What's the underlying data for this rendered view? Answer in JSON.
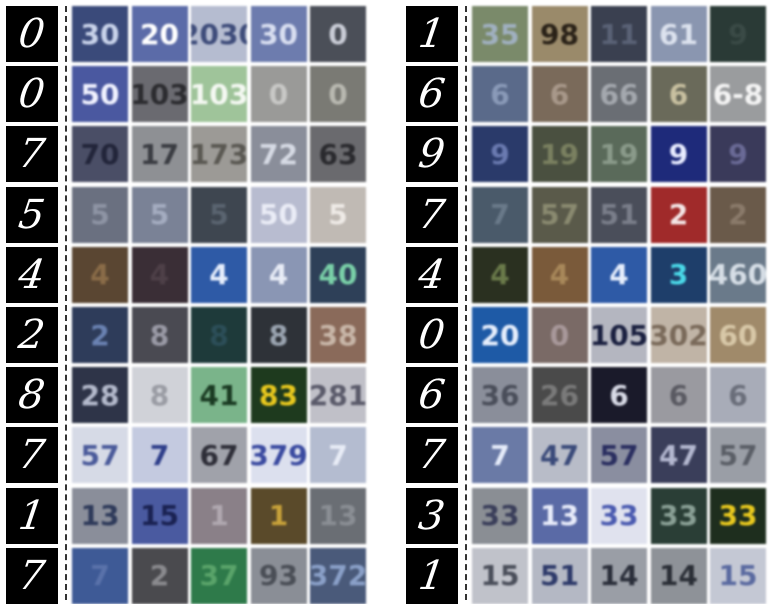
{
  "left_panel": {
    "rows": [
      {
        "digit": "0",
        "tiles": [
          {
            "text": "30",
            "bg": "#3a4a7a",
            "fg": "#c9d3ea"
          },
          {
            "text": "20",
            "bg": "#5b6ba8",
            "fg": "#ffffff"
          },
          {
            "text": "2030",
            "bg": "#b5bcd0",
            "fg": "#3e4c7a"
          },
          {
            "text": "30",
            "bg": "#6d7cae",
            "fg": "#d8def0"
          },
          {
            "text": "0",
            "bg": "#4b4f58",
            "fg": "#c9ccd6"
          }
        ]
      },
      {
        "digit": "0",
        "tiles": [
          {
            "text": "50",
            "bg": "#4a58a0",
            "fg": "#f0f2ff"
          },
          {
            "text": "103",
            "bg": "#6a6a70",
            "fg": "#2c2c30"
          },
          {
            "text": "103",
            "bg": "#9fc49a",
            "fg": "#f4f8f2"
          },
          {
            "text": "0",
            "bg": "#9a9a98",
            "fg": "#c8c8c6"
          },
          {
            "text": "0",
            "bg": "#7a7a74",
            "fg": "#b8b8b0"
          }
        ]
      },
      {
        "digit": "7",
        "tiles": [
          {
            "text": "70",
            "bg": "#4a4e66",
            "fg": "#22253a"
          },
          {
            "text": "17",
            "bg": "#8e9094",
            "fg": "#3a3c42"
          },
          {
            "text": "173",
            "bg": "#9c9a96",
            "fg": "#5a5852"
          },
          {
            "text": "72",
            "bg": "#8a8e9a",
            "fg": "#d6dae4"
          },
          {
            "text": "63",
            "bg": "#6a6a6e",
            "fg": "#2a2a2e"
          }
        ]
      },
      {
        "digit": "5",
        "tiles": [
          {
            "text": "5",
            "bg": "#6a7080",
            "fg": "#8e94a4"
          },
          {
            "text": "5",
            "bg": "#7a8296",
            "fg": "#a4acc0"
          },
          {
            "text": "5",
            "bg": "#3e4650",
            "fg": "#5a6470"
          },
          {
            "text": "50",
            "bg": "#b8bcd0",
            "fg": "#eaecf6"
          },
          {
            "text": "5",
            "bg": "#c0bab4",
            "fg": "#eeeae6"
          }
        ]
      },
      {
        "digit": "4",
        "tiles": [
          {
            "text": "4",
            "bg": "#5a4632",
            "fg": "#8a6c48"
          },
          {
            "text": "4",
            "bg": "#3a2e36",
            "fg": "#4e4048"
          },
          {
            "text": "4",
            "bg": "#2e5aa6",
            "fg": "#e6eefc"
          },
          {
            "text": "4",
            "bg": "#8a96b4",
            "fg": "#e8ecf6"
          },
          {
            "text": "40",
            "bg": "#2e4058",
            "fg": "#7ad0a8"
          }
        ]
      },
      {
        "digit": "2",
        "tiles": [
          {
            "text": "2",
            "bg": "#2e3c5a",
            "fg": "#6a82b2"
          },
          {
            "text": "8",
            "bg": "#4a4a52",
            "fg": "#9a9aa6"
          },
          {
            "text": "8",
            "bg": "#1e3a3a",
            "fg": "#2c4e58"
          },
          {
            "text": "8",
            "bg": "#2e3238",
            "fg": "#9aa4b0"
          },
          {
            "text": "38",
            "bg": "#8a6a5a",
            "fg": "#c8b6a8"
          }
        ]
      },
      {
        "digit": "8",
        "tiles": [
          {
            "text": "28",
            "bg": "#2e3448",
            "fg": "#b4bacc"
          },
          {
            "text": "8",
            "bg": "#d0d2d8",
            "fg": "#9a9ca4"
          },
          {
            "text": "41",
            "bg": "#7ab48a",
            "fg": "#1a3a22"
          },
          {
            "text": "83",
            "bg": "#1e3a1e",
            "fg": "#e8c81e"
          },
          {
            "text": "281",
            "bg": "#c0c0c8",
            "fg": "#5a5a6a"
          }
        ]
      },
      {
        "digit": "7",
        "tiles": [
          {
            "text": "57",
            "bg": "#d6dae6",
            "fg": "#4a5a9a"
          },
          {
            "text": "7",
            "bg": "#c4cae0",
            "fg": "#2e3e8a"
          },
          {
            "text": "67",
            "bg": "#a0a2aa",
            "fg": "#2e2e38"
          },
          {
            "text": "379",
            "bg": "#dce0ee",
            "fg": "#3a4aa0"
          },
          {
            "text": "7",
            "bg": "#b4bcd0",
            "fg": "#e8ecf6"
          }
        ]
      },
      {
        "digit": "1",
        "tiles": [
          {
            "text": "13",
            "bg": "#8a8e9a",
            "fg": "#2e3a5a"
          },
          {
            "text": "15",
            "bg": "#4a5aa0",
            "fg": "#1a2252"
          },
          {
            "text": "1",
            "bg": "#8a8088",
            "fg": "#b0a8b0"
          },
          {
            "text": "1",
            "bg": "#5a4a2a",
            "fg": "#c8a23a"
          },
          {
            "text": "13",
            "bg": "#6a6e74",
            "fg": "#8a8e94"
          }
        ]
      },
      {
        "digit": "7",
        "tiles": [
          {
            "text": "7",
            "bg": "#3e5a96",
            "fg": "#5a72aa"
          },
          {
            "text": "2",
            "bg": "#4a4a4e",
            "fg": "#8a8a8e"
          },
          {
            "text": "37",
            "bg": "#2e7a4a",
            "fg": "#5aa46a"
          },
          {
            "text": "93",
            "bg": "#8a8e96",
            "fg": "#4a4e56"
          },
          {
            "text": "372",
            "bg": "#4a5a7a",
            "fg": "#8aa0c8"
          }
        ]
      }
    ]
  },
  "right_panel": {
    "rows": [
      {
        "digit": "1",
        "tiles": [
          {
            "text": "35",
            "bg": "#7a8a6a",
            "fg": "#a0b0c0"
          },
          {
            "text": "98",
            "bg": "#9a8a6a",
            "fg": "#2a2218"
          },
          {
            "text": "11",
            "bg": "#3a4050",
            "fg": "#5a6276"
          },
          {
            "text": "61",
            "bg": "#8a96b0",
            "fg": "#dce2ee"
          },
          {
            "text": "9",
            "bg": "#2a3a36",
            "fg": "#3a4a46"
          }
        ]
      },
      {
        "digit": "6",
        "tiles": [
          {
            "text": "6",
            "bg": "#5a6a8a",
            "fg": "#8a9ab8"
          },
          {
            "text": "6",
            "bg": "#7a6a5a",
            "fg": "#a8988a"
          },
          {
            "text": "66",
            "bg": "#6a6e74",
            "fg": "#a4a8ae"
          },
          {
            "text": "6",
            "bg": "#6a6a5a",
            "fg": "#c8c0a0"
          },
          {
            "text": "6-8",
            "bg": "#9a9c9e",
            "fg": "#f4f4f4"
          }
        ]
      },
      {
        "digit": "9",
        "tiles": [
          {
            "text": "9",
            "bg": "#2a3a6a",
            "fg": "#6a7ab0"
          },
          {
            "text": "19",
            "bg": "#4a5040",
            "fg": "#7a8060"
          },
          {
            "text": "19",
            "bg": "#5a6a5a",
            "fg": "#8a9a8a"
          },
          {
            "text": "9",
            "bg": "#1e2a7a",
            "fg": "#e8ecff"
          },
          {
            "text": "9",
            "bg": "#3a3a5a",
            "fg": "#6a6a96"
          }
        ]
      },
      {
        "digit": "7",
        "tiles": [
          {
            "text": "7",
            "bg": "#4a5a6a",
            "fg": "#6a7a8a"
          },
          {
            "text": "57",
            "bg": "#5a5a4a",
            "fg": "#8a8a70"
          },
          {
            "text": "51",
            "bg": "#4a4e5a",
            "fg": "#7a7e8a"
          },
          {
            "text": "2",
            "bg": "#a02a2a",
            "fg": "#f4e6e6"
          },
          {
            "text": "2",
            "bg": "#6a5a4a",
            "fg": "#8a7a6a"
          }
        ]
      },
      {
        "digit": "4",
        "tiles": [
          {
            "text": "4",
            "bg": "#2a3020",
            "fg": "#6a7a4a"
          },
          {
            "text": "4",
            "bg": "#7a5a3a",
            "fg": "#a8885a"
          },
          {
            "text": "4",
            "bg": "#2e5aa6",
            "fg": "#e6eefc"
          },
          {
            "text": "3",
            "bg": "#1e3e6a",
            "fg": "#4ad8e8"
          },
          {
            "text": "460",
            "bg": "#6a7a8a",
            "fg": "#d6dee6"
          }
        ]
      },
      {
        "digit": "0",
        "tiles": [
          {
            "text": "20",
            "bg": "#1e5aa6",
            "fg": "#e6eefc"
          },
          {
            "text": "0",
            "bg": "#7a6a66",
            "fg": "#a8989a"
          },
          {
            "text": "105",
            "bg": "#b4b6c0",
            "fg": "#1a2040"
          },
          {
            "text": "302",
            "bg": "#c0b4a6",
            "fg": "#7a6a5a"
          },
          {
            "text": "60",
            "bg": "#a08a6a",
            "fg": "#d8c8a8"
          }
        ]
      },
      {
        "digit": "6",
        "tiles": [
          {
            "text": "36",
            "bg": "#8a8e9a",
            "fg": "#4a4e5a"
          },
          {
            "text": "26",
            "bg": "#4a4a4a",
            "fg": "#7a7a7a"
          },
          {
            "text": "6",
            "bg": "#1a1a2a",
            "fg": "#d8dae6"
          },
          {
            "text": "6",
            "bg": "#9a9aa0",
            "fg": "#5a5a62"
          },
          {
            "text": "6",
            "bg": "#a8acb8",
            "fg": "#6a6e7a"
          }
        ]
      },
      {
        "digit": "7",
        "tiles": [
          {
            "text": "7",
            "bg": "#6a7aa6",
            "fg": "#e6ecfa"
          },
          {
            "text": "47",
            "bg": "#b8bcc8",
            "fg": "#3a4a7a"
          },
          {
            "text": "57",
            "bg": "#8a8ea0",
            "fg": "#2a2e60"
          },
          {
            "text": "47",
            "bg": "#3a3e5a",
            "fg": "#b4b8d0"
          },
          {
            "text": "57",
            "bg": "#9a9ea6",
            "fg": "#5a5e66"
          }
        ]
      },
      {
        "digit": "3",
        "tiles": [
          {
            "text": "33",
            "bg": "#8a8e94",
            "fg": "#3a3e5a"
          },
          {
            "text": "13",
            "bg": "#5a6aa6",
            "fg": "#e8ecfa"
          },
          {
            "text": "33",
            "bg": "#e0e2ee",
            "fg": "#4a5ab0"
          },
          {
            "text": "33",
            "bg": "#2a3e36",
            "fg": "#8aa096"
          },
          {
            "text": "33",
            "bg": "#1e2e1e",
            "fg": "#e8c81e"
          }
        ]
      },
      {
        "digit": "1",
        "tiles": [
          {
            "text": "15",
            "bg": "#c0c2ca",
            "fg": "#4a4e5a"
          },
          {
            "text": "51",
            "bg": "#b4b8c4",
            "fg": "#2e3a6a"
          },
          {
            "text": "14",
            "bg": "#9a9ea6",
            "fg": "#2a2e3a"
          },
          {
            "text": "14",
            "bg": "#8e9298",
            "fg": "#2a2e36"
          },
          {
            "text": "15",
            "bg": "#c4c8d4",
            "fg": "#5a6aa0"
          }
        ]
      }
    ]
  }
}
